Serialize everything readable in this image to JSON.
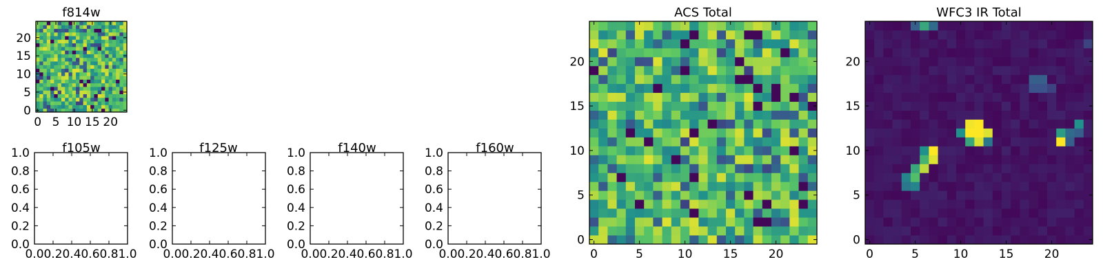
{
  "figure": {
    "background": "#ffffff",
    "colormap": [
      "#440154",
      "#3b528b",
      "#21918c",
      "#5ec962",
      "#fde725"
    ]
  },
  "chart_data": [
    {
      "type": "heatmap",
      "title": "f814w",
      "grid_size": 25,
      "xticks": [
        0,
        5,
        10,
        15,
        20
      ],
      "yticks": [
        0,
        5,
        10,
        15,
        20
      ],
      "xlim": [
        -0.5,
        24.5
      ],
      "ylim": [
        -0.5,
        24.5
      ],
      "pattern": "noisy background, mostly green-yellow with scattered dark pixels",
      "seed": 11
    },
    {
      "type": "empty",
      "title": "f105w",
      "xticks": [
        "0.0",
        "0.2",
        "0.4",
        "0.6",
        "0.8",
        "1.0"
      ],
      "yticks": [
        "0.0",
        "0.2",
        "0.4",
        "0.6",
        "0.8",
        "1.0"
      ],
      "xlim": [
        0,
        1
      ],
      "ylim": [
        0,
        1
      ]
    },
    {
      "type": "empty",
      "title": "f125w",
      "xticks": [
        "0.0",
        "0.2",
        "0.4",
        "0.6",
        "0.8",
        "1.0"
      ],
      "yticks": [
        "0.0",
        "0.2",
        "0.4",
        "0.6",
        "0.8",
        "1.0"
      ],
      "xlim": [
        0,
        1
      ],
      "ylim": [
        0,
        1
      ]
    },
    {
      "type": "empty",
      "title": "f140w",
      "xticks": [
        "0.0",
        "0.2",
        "0.4",
        "0.6",
        "0.8",
        "1.0"
      ],
      "yticks": [
        "0.0",
        "0.2",
        "0.4",
        "0.6",
        "0.8",
        "1.0"
      ],
      "xlim": [
        0,
        1
      ],
      "ylim": [
        0,
        1
      ]
    },
    {
      "type": "empty",
      "title": "f160w",
      "xticks": [
        "0.0",
        "0.2",
        "0.4",
        "0.6",
        "0.8",
        "1.0"
      ],
      "yticks": [
        "0.0",
        "0.2",
        "0.4",
        "0.6",
        "0.8",
        "1.0"
      ],
      "xlim": [
        0,
        1
      ],
      "ylim": [
        0,
        1
      ]
    },
    {
      "type": "heatmap",
      "title": "ACS Total",
      "grid_size": 25,
      "xticks": [
        0,
        5,
        10,
        15,
        20
      ],
      "yticks": [
        0,
        5,
        10,
        15,
        20
      ],
      "xlim": [
        -0.5,
        24.5
      ],
      "ylim": [
        -0.5,
        24.5
      ],
      "pattern": "noisy background, mostly green-yellow with scattered dark pixels",
      "seed": 7
    },
    {
      "type": "heatmap",
      "title": "WFC3 IR Total",
      "grid_size": 25,
      "xticks": [
        0,
        5,
        10,
        15,
        20
      ],
      "yticks": [
        0,
        5,
        10,
        15,
        20
      ],
      "xlim": [
        -0.5,
        24.5
      ],
      "ylim": [
        -0.5,
        24.5
      ],
      "pattern": "dark background with a few bright compact sources",
      "seed": 3,
      "sources": [
        {
          "x": 12,
          "y": 12,
          "value": 1.0
        },
        {
          "x": 11,
          "y": 12,
          "value": 1.0
        },
        {
          "x": 12,
          "y": 13,
          "value": 1.0
        },
        {
          "x": 11,
          "y": 13,
          "value": 0.98
        },
        {
          "x": 13,
          "y": 12,
          "value": 0.95
        },
        {
          "x": 12,
          "y": 11,
          "value": 0.95
        },
        {
          "x": 11,
          "y": 11,
          "value": 0.6
        },
        {
          "x": 13,
          "y": 11,
          "value": 0.4
        },
        {
          "x": 10,
          "y": 12,
          "value": 0.5
        },
        {
          "x": 7,
          "y": 10,
          "value": 1.0
        },
        {
          "x": 7,
          "y": 9,
          "value": 0.95
        },
        {
          "x": 6,
          "y": 10,
          "value": 0.5
        },
        {
          "x": 6,
          "y": 9,
          "value": 0.65
        },
        {
          "x": 6,
          "y": 8,
          "value": 0.9
        },
        {
          "x": 5,
          "y": 8,
          "value": 0.6
        },
        {
          "x": 5,
          "y": 7,
          "value": 0.7
        },
        {
          "x": 4,
          "y": 7,
          "value": 0.45
        },
        {
          "x": 4,
          "y": 6,
          "value": 0.4
        },
        {
          "x": 5,
          "y": 6,
          "value": 0.45
        },
        {
          "x": 21,
          "y": 11,
          "value": 1.0
        },
        {
          "x": 21,
          "y": 12,
          "value": 0.55
        },
        {
          "x": 22,
          "y": 12,
          "value": 0.35
        },
        {
          "x": 22,
          "y": 11,
          "value": 0.3
        },
        {
          "x": 23,
          "y": 13,
          "value": 0.5
        },
        {
          "x": 23,
          "y": 12,
          "value": 0.3
        },
        {
          "x": 18,
          "y": 18,
          "value": 0.3
        },
        {
          "x": 19,
          "y": 18,
          "value": 0.3
        },
        {
          "x": 18,
          "y": 17,
          "value": 0.25
        },
        {
          "x": 19,
          "y": 17,
          "value": 0.25
        },
        {
          "x": 20,
          "y": 17,
          "value": 0.2
        },
        {
          "x": 5,
          "y": 24,
          "value": 0.3
        },
        {
          "x": 6,
          "y": 24,
          "value": 0.6
        },
        {
          "x": 7,
          "y": 24,
          "value": 0.35
        },
        {
          "x": 24,
          "y": 22,
          "value": 0.2
        }
      ]
    }
  ]
}
